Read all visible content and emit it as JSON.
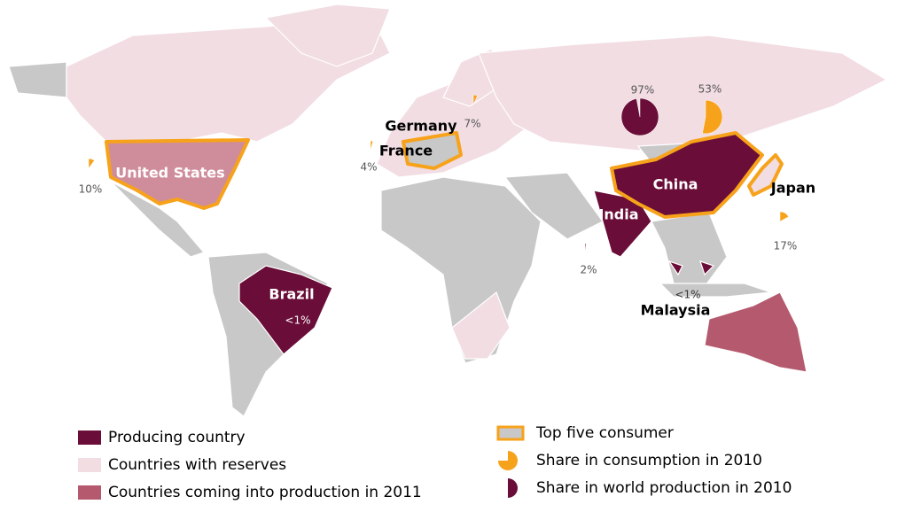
{
  "countries": [
    {
      "name": "United States"
    },
    {
      "name": "Brazil"
    },
    {
      "name": "China"
    },
    {
      "name": "India"
    },
    {
      "name": "Germany"
    },
    {
      "name": "France"
    },
    {
      "name": "Japan"
    },
    {
      "name": "Malaysia"
    }
  ],
  "pies": [
    {
      "value": 97,
      "label": "97%",
      "color": "#6a0d38"
    },
    {
      "value": 53,
      "label": "53%",
      "color": "#f7a21b"
    },
    {
      "value": 7,
      "label": "7%",
      "color": "#f7a21b"
    },
    {
      "value": 4,
      "label": "4%",
      "color": "#f7a21b"
    },
    {
      "value": 10,
      "label": "10%",
      "color": "#f7a21b"
    },
    {
      "value": 17,
      "label": "17%",
      "color": "#f7a21b"
    },
    {
      "value": 2,
      "label": "2%",
      "color": "#6a0d38"
    }
  ],
  "notes": [
    "<1%",
    "<1%"
  ],
  "legend": [
    {
      "label": "Producing country",
      "color": "#6a0d38"
    },
    {
      "label": "Countries with reserves",
      "color": "#f2dde3"
    },
    {
      "label": "Countries coming into production in 2011",
      "color": "#b5596e"
    },
    {
      "label": "Top five consumer",
      "color": "#c8c8c8"
    },
    {
      "label": "Share in consumption in 2010",
      "color": "#f7a21b"
    },
    {
      "label": "Share in world production in 2010",
      "color": "#6a0d38"
    }
  ]
}
